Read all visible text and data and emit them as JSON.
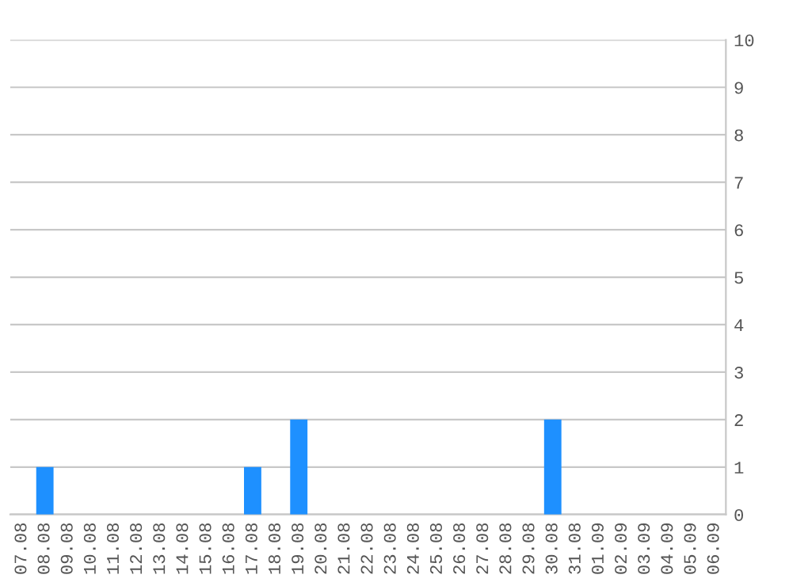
{
  "chart_data": {
    "type": "bar",
    "categories": [
      "07.08",
      "08.08",
      "09.08",
      "10.08",
      "11.08",
      "12.08",
      "13.08",
      "14.08",
      "15.08",
      "16.08",
      "17.08",
      "18.08",
      "19.08",
      "20.08",
      "21.08",
      "22.08",
      "23.08",
      "24.08",
      "25.08",
      "26.08",
      "27.08",
      "28.08",
      "29.08",
      "30.08",
      "31.08",
      "01.09",
      "02.09",
      "03.09",
      "04.09",
      "05.09",
      "06.09"
    ],
    "values": [
      0,
      1,
      0,
      0,
      0,
      0,
      0,
      0,
      0,
      0,
      1,
      0,
      2,
      0,
      0,
      0,
      0,
      0,
      0,
      0,
      0,
      0,
      0,
      2,
      0,
      0,
      0,
      0,
      0,
      0,
      0
    ],
    "color": "#1e90ff",
    "ylim": [
      0,
      10
    ],
    "yticks": [
      0,
      1,
      2,
      3,
      4,
      5,
      6,
      7,
      8,
      9,
      10
    ],
    "grid": "y"
  }
}
